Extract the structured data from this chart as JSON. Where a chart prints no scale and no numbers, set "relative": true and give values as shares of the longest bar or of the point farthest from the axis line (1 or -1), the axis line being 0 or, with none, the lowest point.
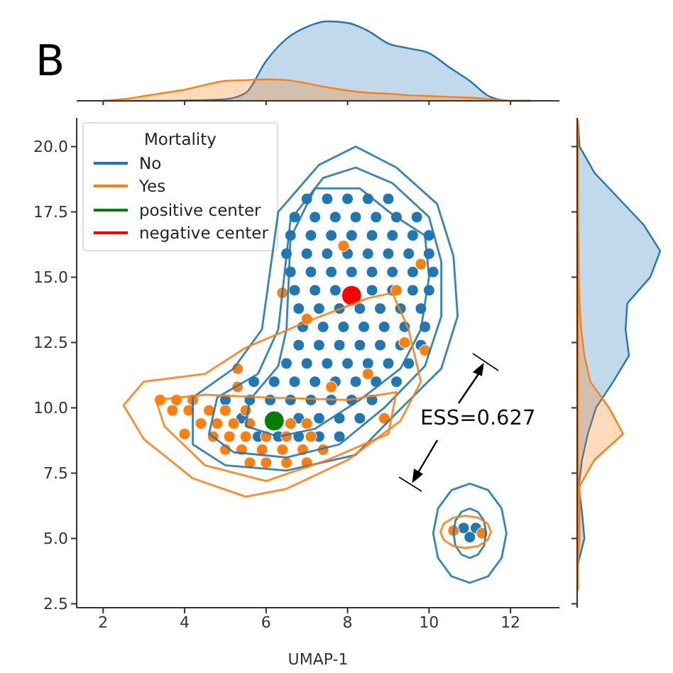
{
  "chart_data": [
    {
      "type": "area",
      "relative": true,
      "tick_labels": false,
      "grid": false,
      "xlim": [
        1.35,
        13.2
      ],
      "xticks": [
        2,
        4,
        6,
        8,
        10,
        12
      ],
      "x": [
        2,
        2.5,
        3,
        3.5,
        4,
        4.5,
        5,
        5.5,
        6,
        6.5,
        7,
        7.5,
        8,
        8.5,
        9,
        9.5,
        10,
        10.5,
        11,
        11.5,
        12,
        12.5
      ],
      "series": [
        {
          "color": "#1f77b4",
          "values": [
            0,
            0,
            0,
            0,
            0.005,
            0.01,
            0.02,
            0.1,
            0.5,
            0.78,
            0.93,
            1.0,
            0.98,
            0.88,
            0.72,
            0.66,
            0.6,
            0.42,
            0.25,
            0.05,
            0,
            0
          ]
        },
        {
          "color": "#ff7f0e",
          "values": [
            0,
            0.02,
            0.06,
            0.1,
            0.14,
            0.2,
            0.25,
            0.26,
            0.27,
            0.26,
            0.22,
            0.17,
            0.13,
            0.1,
            0.09,
            0.07,
            0.06,
            0.05,
            0.04,
            0.02,
            0,
            0
          ]
        }
      ]
    },
    {
      "type": "scatter",
      "xlabel": "UMAP-1",
      "legend_title": "Mortality",
      "legend": "top left",
      "grid": false,
      "marker": "circle",
      "annotations": [
        "B",
        "ESS=0.627"
      ],
      "xlim": [
        1.35,
        13.2
      ],
      "xticks": [
        2,
        4,
        6,
        8,
        10,
        12
      ],
      "ylim": [
        2.35,
        21.1
      ],
      "yticks": [
        2.5,
        {
          "value": 5,
          "label": "5.0"
        },
        7.5,
        {
          "value": 10,
          "label": "10.0"
        },
        12.5,
        {
          "value": 15,
          "label": "15.0"
        },
        17.5,
        {
          "value": 20,
          "label": "20.0"
        }
      ],
      "series": [
        {
          "name": "No",
          "color": "#1f77b4",
          "x": [
            7.0,
            7.5,
            8.0,
            8.5,
            9.0,
            6.7,
            7.2,
            7.7,
            8.2,
            8.7,
            9.2,
            9.7,
            6.6,
            7.1,
            7.6,
            8.1,
            8.6,
            9.1,
            9.6,
            10.0,
            6.5,
            7.0,
            7.5,
            8.0,
            8.5,
            9.0,
            9.5,
            10.0,
            6.6,
            7.1,
            7.6,
            8.1,
            8.6,
            9.1,
            9.6,
            10.1,
            6.7,
            7.2,
            7.7,
            8.6,
            9.1,
            9.6,
            10.0,
            6.8,
            7.3,
            7.8,
            8.3,
            8.8,
            9.3,
            9.8,
            6.9,
            7.4,
            7.9,
            8.4,
            8.9,
            9.4,
            9.9,
            6.8,
            7.3,
            7.8,
            8.3,
            8.8,
            9.3,
            9.8,
            6.5,
            7.0,
            7.5,
            8.0,
            8.5,
            9.0,
            9.5,
            5.7,
            6.2,
            6.7,
            7.2,
            7.7,
            8.2,
            8.7,
            9.2,
            5.0,
            5.6,
            6.1,
            6.6,
            7.1,
            7.6,
            8.1,
            8.6,
            5.4,
            6.8,
            7.3,
            7.8,
            8.3,
            5.8,
            6.3,
            6.8,
            7.3,
            7.8,
            10.85,
            11.15,
            11.0
          ],
          "values": [
            18,
            18,
            18,
            18,
            18,
            17.3,
            17.3,
            17.3,
            17.3,
            17.3,
            17.3,
            17.3,
            16.6,
            16.6,
            16.6,
            16.6,
            16.6,
            16.6,
            16.6,
            16.6,
            15.9,
            15.9,
            15.9,
            15.9,
            15.9,
            15.9,
            15.9,
            15.9,
            15.2,
            15.2,
            15.2,
            15.2,
            15.2,
            15.2,
            15.2,
            15.2,
            14.5,
            14.5,
            14.5,
            14.5,
            14.5,
            14.5,
            14.5,
            13.8,
            13.8,
            13.8,
            13.8,
            13.8,
            13.8,
            13.8,
            13.1,
            13.1,
            13.1,
            13.1,
            13.1,
            13.1,
            13.1,
            12.4,
            12.4,
            12.4,
            12.4,
            12.4,
            12.4,
            12.4,
            11.7,
            11.7,
            11.7,
            11.7,
            11.7,
            11.7,
            11.7,
            11,
            11,
            11,
            11,
            11,
            11,
            11,
            11,
            10.3,
            10.3,
            10.3,
            10.3,
            10.3,
            10.3,
            10.3,
            10.3,
            9.6,
            9.6,
            9.6,
            9.6,
            9.6,
            8.9,
            8.9,
            8.9,
            8.9,
            8.9,
            5.4,
            5.4,
            5.05
          ]
        },
        {
          "name": "Yes",
          "color": "#ff7f0e",
          "x": [
            3.4,
            3.8,
            4.2,
            3.7,
            4.1,
            4.6,
            5.0,
            5.5,
            4.4,
            4.8,
            5.2,
            5.6,
            6.6,
            7.0,
            4.7,
            5.1,
            5.5,
            6.0,
            6.5,
            7.1,
            5.0,
            5.4,
            5.9,
            6.4,
            6.9,
            7.4,
            5.6,
            6.0,
            6.5,
            7.0,
            7.9,
            6.4,
            7.0,
            9.2,
            9.8,
            9.4,
            8.5,
            9.9,
            7.6,
            8.9,
            10.6,
            11.3,
            5.3,
            4.0,
            5.3
          ],
          "values": [
            10.3,
            10.3,
            10.3,
            9.9,
            9.9,
            9.9,
            9.9,
            9.9,
            9.4,
            9.4,
            9.4,
            9.4,
            9.4,
            9.4,
            8.9,
            8.9,
            8.9,
            8.9,
            8.9,
            8.9,
            8.4,
            8.4,
            8.4,
            8.4,
            8.4,
            8.4,
            7.9,
            7.9,
            7.9,
            7.9,
            16.2,
            14.4,
            13.4,
            14.5,
            15.5,
            12.5,
            11.3,
            12.2,
            10.8,
            9.6,
            5.3,
            5.2,
            11.5,
            9.0,
            10.8
          ]
        },
        {
          "name": "positive center",
          "color": "#008000",
          "x": [
            6.2
          ],
          "values": [
            9.5
          ]
        },
        {
          "name": "negative center",
          "color": "#ff0000",
          "x": [
            8.1
          ],
          "values": [
            14.3
          ]
        }
      ]
    }
  ]
}
